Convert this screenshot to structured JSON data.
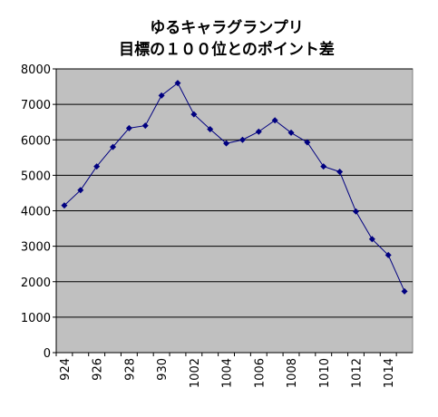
{
  "chart_data": {
    "type": "line",
    "title": [
      "ゆるキャラグランプリ",
      "目標の１００位とのポイント差"
    ],
    "categories": [
      "924",
      null,
      "926",
      null,
      "928",
      null,
      "930",
      null,
      "1002",
      null,
      "1004",
      null,
      "1006",
      null,
      "1008",
      null,
      "1010",
      null,
      "1012",
      null,
      "1014",
      null
    ],
    "series": [
      {
        "color": "#000080",
        "values": [
          4150,
          4580,
          5250,
          5800,
          6330,
          6400,
          7250,
          7600,
          6720,
          6300,
          5900,
          6000,
          6230,
          6550,
          6200,
          5930,
          5250,
          5100,
          3980,
          3200,
          2750,
          1730
        ]
      }
    ],
    "ylim": [
      0,
      8000
    ],
    "yticks": [
      0,
      1000,
      2000,
      3000,
      4000,
      5000,
      6000,
      7000,
      8000
    ],
    "grid": true,
    "plot_color": "#c0c0c0"
  }
}
